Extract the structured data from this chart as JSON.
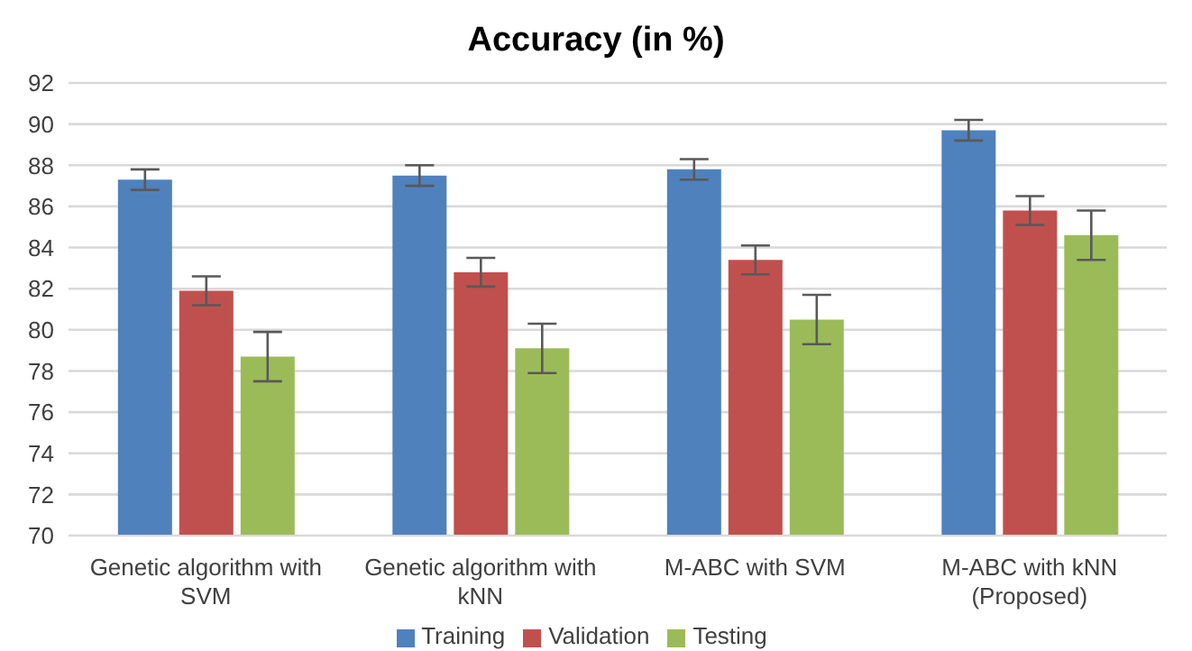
{
  "chart_data": {
    "type": "bar",
    "title": "Accuracy (in %)",
    "categories": [
      "Genetic algorithm with SVM",
      "Genetic algorithm with kNN",
      "M-ABC with SVM",
      "M-ABC with kNN (Proposed)"
    ],
    "series": [
      {
        "name": "Training",
        "color": "#4f81bd",
        "values": [
          87.3,
          87.5,
          87.8,
          89.7
        ],
        "errors": [
          0.5,
          0.5,
          0.5,
          0.5
        ]
      },
      {
        "name": "Validation",
        "color": "#c0504d",
        "values": [
          81.9,
          82.8,
          83.4,
          85.8
        ],
        "errors": [
          0.7,
          0.7,
          0.7,
          0.7
        ]
      },
      {
        "name": "Testing",
        "color": "#9bbb59",
        "values": [
          78.7,
          79.1,
          80.5,
          84.6
        ],
        "errors": [
          1.2,
          1.2,
          1.2,
          1.2
        ]
      }
    ],
    "ylim": [
      70,
      92
    ],
    "yticks": [
      70,
      72,
      74,
      76,
      78,
      80,
      82,
      84,
      86,
      88,
      90,
      92
    ],
    "grid": "y",
    "legend": "bottom"
  }
}
